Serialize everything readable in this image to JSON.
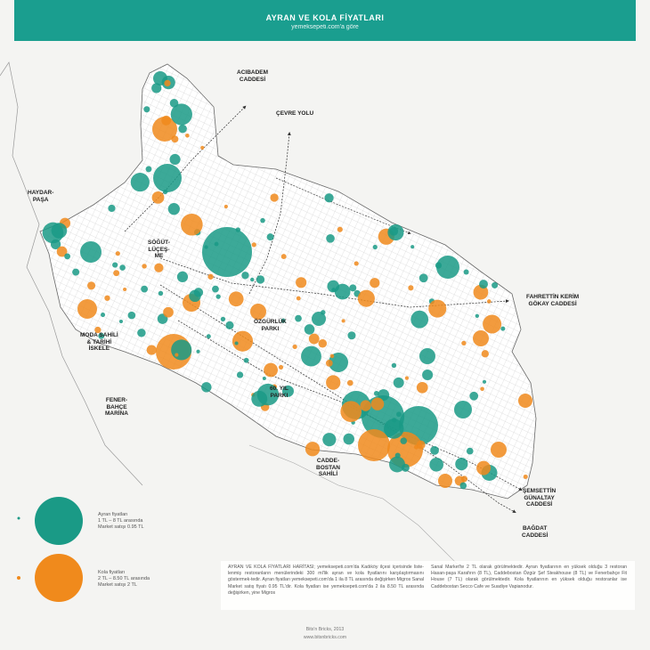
{
  "header": {
    "title": "AYRAN VE KOLA FİYATLARI",
    "subtitle": "yemeksepeti.com'a göre"
  },
  "colors": {
    "header": "#1a9e8f",
    "ayran": "#1a9a86",
    "kola": "#f08a1c",
    "land": "#ffffff",
    "street": "#bbbbbb"
  },
  "labels": {
    "acibadem": "ACIBADEM\nCADDESİ",
    "cevre": "ÇEVRE YOLU",
    "haydarpasa": "HAYDAR-\nPAŞA",
    "sogutlucesme": "SÖĞÜT-\nLÜÇEŞ-\nME",
    "fahrettin": "FAHRETTİN KERİM\nGÖKAY CADDESİ",
    "ozgurluk": "ÖZGÜRLÜK\nPARKI",
    "moda": "MODA SAHİLİ\n& TARİHİ\nİSKELE",
    "fenerbahce": "FENER-\nBAHÇE\nMARİNA",
    "yil60": "60. YIL\nPARKI",
    "caddebostan": "CADDE-\nBOSTAN\nSAHİLİ",
    "semsettin": "ŞEMSETTİN\nGÜNALTAY\nCADDESİ",
    "bagdat": "BAĞDAT\nCADDESİ"
  },
  "legend": {
    "ayran": "Ayran fiyatları\n1 TL – 8 TL arasında\nMarket satışı 0.95 TL",
    "kola": "Kola fiyatları\n2 TL – 8.50 TL arasında\nMarket satışı 2 TL"
  },
  "description": {
    "col1": "AYRAN VE KOLA FİYATLARI HARİTASI; yemeksepeti.com'da Kadıköy ilçesi içerisinde liste-lenmiş restoranların menülerindeki 300 ml'lik ayran ve kola fiyatlarını karşılaştırmasını göstermek-tedir.  Ayran fiyatları yemeksepeti.com'da 1 ila 8 TL arasında değişirken Migros Sanal Market satış fiyatı 0.95 TL'dir. Kola fiyatları ise yemeksepeti.com'da 2 ila 8.50 TL arasında değişirken, yine Migros",
    "col2": "Sanal Market'te 2 TL olarak görülmektedir. Ayran fiyatlarının en yüksek olduğu 3 restoran Hasan-paşa Karafırın (8 TL), Caddebostan Özgür Şef Steakhouse (8 TL) ve Fenerbahçe Fit House (7 TL) olarak görülmektedir. Kola fiyatlarının en yüksek olduğu restoranlar ise Caddebostan Secco Cafe ve Suadiye Vapianodur."
  },
  "footer": {
    "credit": "Bits'n Bricks, 2013",
    "url": "www.bitsnbricks.com"
  }
}
